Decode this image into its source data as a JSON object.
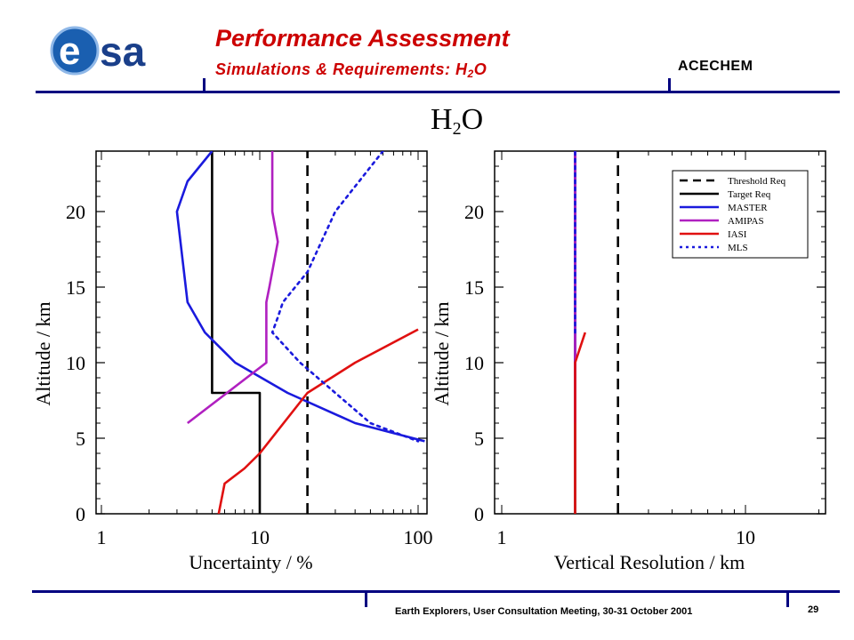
{
  "header": {
    "title": "Performance Assessment",
    "subtitle": "Simulations & Requirements: H",
    "subtitle_sub": "2",
    "subtitle_tail": "O",
    "project": "ACECHEM",
    "logo_text": "esa"
  },
  "heading": {
    "main": "H",
    "sub": "2",
    "tail": "O"
  },
  "footer": {
    "text": "Earth Explorers, User Consultation Meeting, 30-31 October 2001",
    "page": "29"
  },
  "colors": {
    "accent_red": "#cc0000",
    "rule_navy": "#000080",
    "threshold": "#000000",
    "target": "#000000",
    "master": "#1a1add",
    "amipas": "#b020c0",
    "iasi": "#e01010",
    "mls": "#1a1add"
  },
  "chart_data": [
    {
      "type": "line",
      "xlabel": "Uncertainty / %",
      "ylabel": "Altitude / km",
      "xscale": "log",
      "xlim": [
        1,
        100
      ],
      "ylim": [
        0,
        24
      ],
      "xticks": [
        "1",
        "10",
        "100"
      ],
      "yticks": [
        "0",
        "5",
        "10",
        "15",
        "20"
      ],
      "series": [
        {
          "name": "Threshold Req",
          "style": "dashed",
          "color": "#000000",
          "x": [
            20,
            20
          ],
          "y": [
            0,
            24
          ]
        },
        {
          "name": "Target Req",
          "style": "solid",
          "color": "#000000",
          "x": [
            10,
            10,
            5,
            5
          ],
          "y": [
            0,
            8,
            8,
            24
          ]
        },
        {
          "name": "MASTER",
          "style": "solid",
          "color": "#1a1add",
          "x": [
            5,
            3.5,
            3,
            3.5,
            4.5,
            7,
            15,
            40,
            110
          ],
          "y": [
            24,
            22,
            20,
            14,
            12,
            10,
            8,
            6,
            4.8
          ]
        },
        {
          "name": "AMIPAS",
          "style": "solid",
          "color": "#b020c0",
          "x": [
            12,
            12,
            13,
            11.5,
            11,
            11,
            3.5
          ],
          "y": [
            24,
            20,
            18,
            15,
            14,
            10,
            6
          ]
        },
        {
          "name": "IASI",
          "style": "solid",
          "color": "#e01010",
          "x": [
            5.5,
            6,
            8,
            10,
            20,
            40,
            100
          ],
          "y": [
            0,
            2,
            3,
            4,
            8,
            10,
            12.2
          ]
        },
        {
          "name": "MLS",
          "style": "dotted",
          "color": "#1a1add",
          "x": [
            60,
            30,
            20,
            14,
            13,
            12,
            18,
            30,
            50,
            100
          ],
          "y": [
            24,
            20,
            16,
            14,
            13,
            12,
            10,
            8,
            6,
            4.8
          ]
        }
      ]
    },
    {
      "type": "line",
      "xlabel": "Vertical Resolution / km",
      "ylabel": "Altitude / km",
      "xscale": "log",
      "xlim": [
        1,
        20
      ],
      "ylim": [
        0,
        24
      ],
      "xticks": [
        "1",
        "10"
      ],
      "yticks": [
        "0",
        "5",
        "10",
        "15",
        "20"
      ],
      "legend_position": "top-right",
      "series": [
        {
          "name": "Threshold Req",
          "style": "dashed",
          "color": "#000000",
          "x": [
            3,
            3
          ],
          "y": [
            0,
            24
          ]
        },
        {
          "name": "Target Req",
          "style": "solid",
          "color": "#000000",
          "x": [
            2,
            2
          ],
          "y": [
            0,
            24
          ]
        },
        {
          "name": "MASTER",
          "style": "solid",
          "color": "#1a1add",
          "x": [
            2,
            2
          ],
          "y": [
            6,
            24
          ]
        },
        {
          "name": "AMIPAS",
          "style": "solid",
          "color": "#b020c0",
          "x": [
            2,
            2
          ],
          "y": [
            6,
            24
          ]
        },
        {
          "name": "IASI",
          "style": "solid",
          "color": "#e01010",
          "x": [
            2,
            2,
            2.2
          ],
          "y": [
            0,
            10,
            12
          ]
        },
        {
          "name": "MLS",
          "style": "dotted",
          "color": "#1a1add",
          "x": [
            2,
            2
          ],
          "y": [
            12,
            24
          ]
        }
      ]
    }
  ]
}
